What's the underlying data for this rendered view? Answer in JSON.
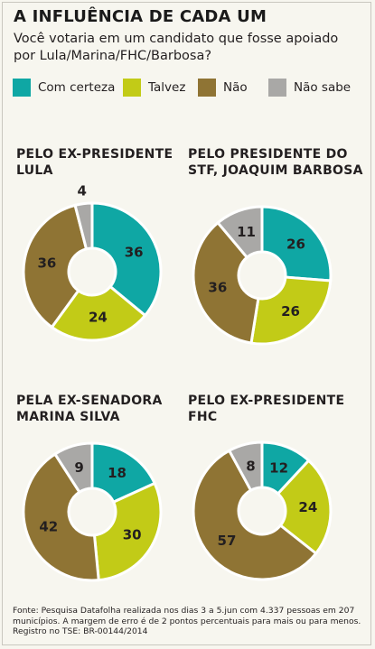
{
  "title": "A INFLUÊNCIA DE CADA UM",
  "subtitle": {
    "line1": "Você votaria em um candidato que fosse apoiado",
    "line2": "por Lula/Marina/FHC/Barbosa?"
  },
  "colors": {
    "com_certeza": "#0fa7a4",
    "talvez": "#c2cb17",
    "nao": "#8f7434",
    "nao_sabe": "#a9a8a6"
  },
  "legend": [
    {
      "label": "Com certeza",
      "color": "#0fa7a4"
    },
    {
      "label": "Talvez",
      "color": "#c2cb17"
    },
    {
      "label": "Não",
      "color": "#8f7434"
    },
    {
      "label": "Não sabe",
      "color": "#a9a8a6"
    }
  ],
  "chart_data": [
    {
      "type": "pie",
      "title_line1": "PELO EX-PRESIDENTE",
      "title_line2": "LULA",
      "categories": [
        "Com certeza",
        "Talvez",
        "Não",
        "Não sabe"
      ],
      "values": [
        36,
        24,
        36,
        4
      ]
    },
    {
      "type": "pie",
      "title_line1": "PELO PRESIDENTE DO",
      "title_line2": "STF, JOAQUIM BARBOSA",
      "categories": [
        "Com certeza",
        "Talvez",
        "Não",
        "Não sabe"
      ],
      "values": [
        26,
        26,
        36,
        11
      ]
    },
    {
      "type": "pie",
      "title_line1": "PELA EX-SENADORA",
      "title_line2": "MARINA SILVA",
      "categories": [
        "Com certeza",
        "Talvez",
        "Não",
        "Não sabe"
      ],
      "values": [
        18,
        30,
        42,
        9
      ]
    },
    {
      "type": "pie",
      "title_line1": "PELO EX-PRESIDENTE",
      "title_line2": "FHC",
      "categories": [
        "Com certeza",
        "Talvez",
        "Não",
        "Não sabe"
      ],
      "values": [
        12,
        24,
        57,
        8
      ]
    }
  ],
  "source": {
    "line1": "Fonte: Pesquisa Datafolha realizada nos dias 3 a 5.jun com 4.337 pessoas em 207",
    "line2": "municípios. A margem de erro é de 2 pontos percentuais para mais ou para menos.",
    "line3": "Registro no TSE: BR-00144/2014"
  }
}
